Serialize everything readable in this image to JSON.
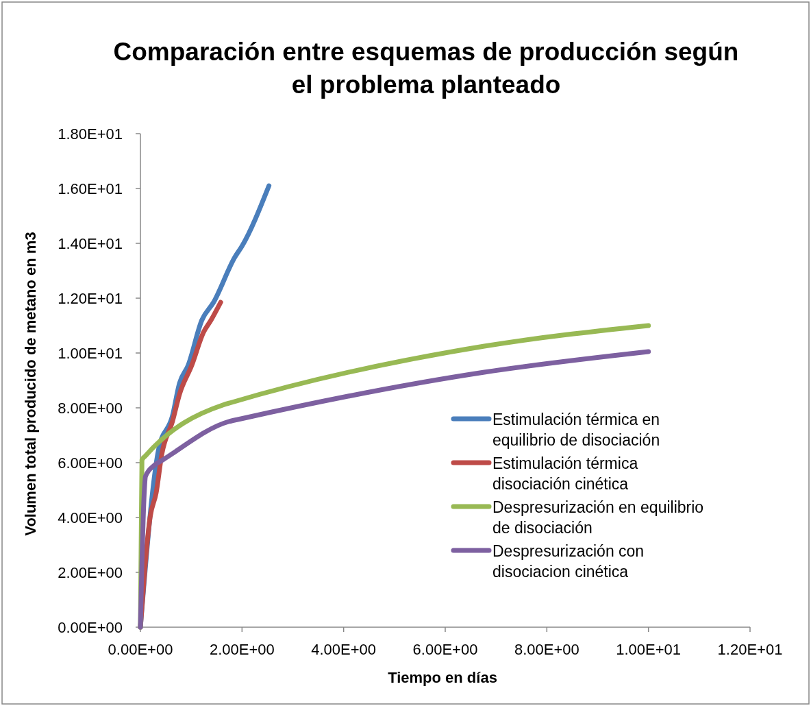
{
  "chart_data": {
    "type": "line",
    "title": "Comparación entre esquemas de producción según el problema planteado",
    "xlabel": "Tiempo en días",
    "ylabel": "Volumen total producido de metano en m3",
    "xlim": [
      0,
      12
    ],
    "ylim": [
      0,
      18
    ],
    "xticks": [
      {
        "value": 0,
        "label": "0.00E+00"
      },
      {
        "value": 2,
        "label": "2.00E+00"
      },
      {
        "value": 4,
        "label": "4.00E+00"
      },
      {
        "value": 6,
        "label": "6.00E+00"
      },
      {
        "value": 8,
        "label": "8.00E+00"
      },
      {
        "value": 10,
        "label": "1.00E+01"
      },
      {
        "value": 12,
        "label": "1.20E+01"
      }
    ],
    "yticks": [
      {
        "value": 0,
        "label": "0.00E+00"
      },
      {
        "value": 2,
        "label": "2.00E+00"
      },
      {
        "value": 4,
        "label": "4.00E+00"
      },
      {
        "value": 6,
        "label": "6.00E+00"
      },
      {
        "value": 8,
        "label": "8.00E+00"
      },
      {
        "value": 10,
        "label": "1.00E+01"
      },
      {
        "value": 12,
        "label": "1.20E+01"
      },
      {
        "value": 14,
        "label": "1.40E+01"
      },
      {
        "value": 16,
        "label": "1.60E+01"
      },
      {
        "value": 18,
        "label": "1.80E+01"
      }
    ],
    "grid": false,
    "legend": "right",
    "marker": "none",
    "line_style": "solid",
    "series": [
      {
        "name": "Estimulación térmica en equilibrio de disociación",
        "color": "#4a7ebb",
        "x": [
          0,
          0.36,
          0.63,
          0.77,
          0.94,
          1.21,
          1.44,
          1.86,
          2.0,
          2.53
        ],
        "values": [
          0,
          6.5,
          7.7,
          8.9,
          9.55,
          11.2,
          11.85,
          13.5,
          13.9,
          16.1
        ]
      },
      {
        "name": "Estimulación térmica disociación cinética",
        "color": "#be4b48",
        "x": [
          0,
          0.09,
          0.19,
          0.31,
          0.42,
          0.63,
          0.77,
          1.01,
          1.24,
          1.39,
          1.58
        ],
        "values": [
          0,
          2.2,
          4.0,
          4.9,
          6.3,
          7.5,
          8.5,
          9.55,
          10.75,
          11.2,
          11.85
        ]
      },
      {
        "name": "Despresurización en equilibrio de disociación",
        "color": "#98b954",
        "x": [
          0,
          0.03,
          0.1,
          1.62,
          1.8,
          6.77,
          10.0
        ],
        "values": [
          0,
          6.1,
          6.25,
          8.1,
          8.2,
          10.25,
          11.0
        ]
      },
      {
        "name": "Despresurización con disociacion cinética",
        "color": "#7d60a0",
        "x": [
          0,
          0.07,
          0.1,
          0.27,
          0.44,
          1.74,
          1.98,
          6.77,
          10.0
        ],
        "values": [
          0,
          4.7,
          5.5,
          5.9,
          6.1,
          7.5,
          7.6,
          9.3,
          10.05
        ]
      }
    ]
  }
}
